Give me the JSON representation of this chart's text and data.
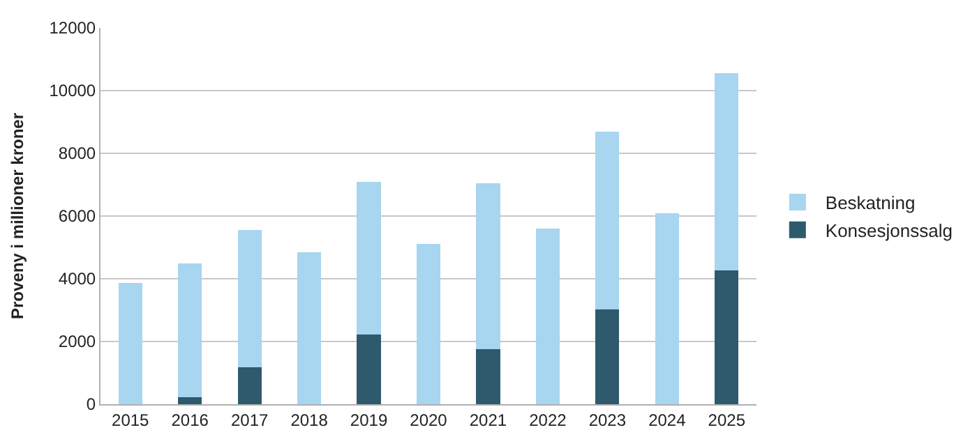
{
  "chart_data": {
    "type": "bar",
    "stacked": true,
    "ylabel": "Proveny i millioner kroner",
    "categories": [
      "2015",
      "2016",
      "2017",
      "2018",
      "2019",
      "2020",
      "2021",
      "2022",
      "2023",
      "2024",
      "2025"
    ],
    "series": [
      {
        "name": "Konsesjonssalg",
        "color": "#2f5a6e",
        "values": [
          0,
          230,
          1180,
          0,
          2220,
          0,
          1750,
          0,
          3020,
          0,
          4270
        ]
      },
      {
        "name": "Beskatning",
        "color": "#a8d5ef",
        "values": [
          3860,
          4250,
          4380,
          4840,
          4870,
          5110,
          5300,
          5590,
          5670,
          6090,
          6280
        ]
      }
    ],
    "ylim": [
      0,
      12000
    ],
    "yticks": [
      0,
      2000,
      4000,
      6000,
      8000,
      10000,
      12000
    ],
    "grid": "y",
    "legend": "right"
  }
}
